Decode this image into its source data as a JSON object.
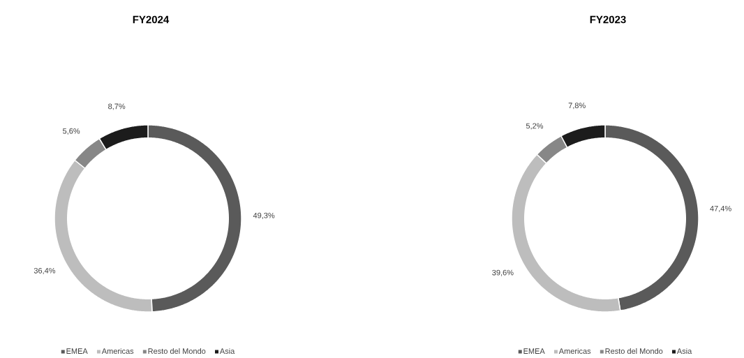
{
  "chart_data": [
    {
      "type": "donut",
      "title": "FY2024",
      "categories": [
        "EMEA",
        "Americas",
        "Resto del Mondo",
        "Asia"
      ],
      "values": [
        49.3,
        36.4,
        5.6,
        8.7
      ],
      "value_labels": [
        "49,3%",
        "36,4%",
        "5,6%",
        "8,7%"
      ],
      "colors": [
        "#5a5a5a",
        "#bdbdbd",
        "#878787",
        "#1c1c1c"
      ],
      "legend": "bottom"
    },
    {
      "type": "donut",
      "title": "FY2023",
      "categories": [
        "EMEA",
        "Americas",
        "Resto del Mondo",
        "Asia"
      ],
      "values": [
        47.4,
        39.6,
        5.2,
        7.8
      ],
      "value_labels": [
        "47,4%",
        "39,6%",
        "5,2%",
        "7,8%"
      ],
      "colors": [
        "#5a5a5a",
        "#bdbdbd",
        "#878787",
        "#1c1c1c"
      ],
      "legend": "bottom"
    }
  ]
}
